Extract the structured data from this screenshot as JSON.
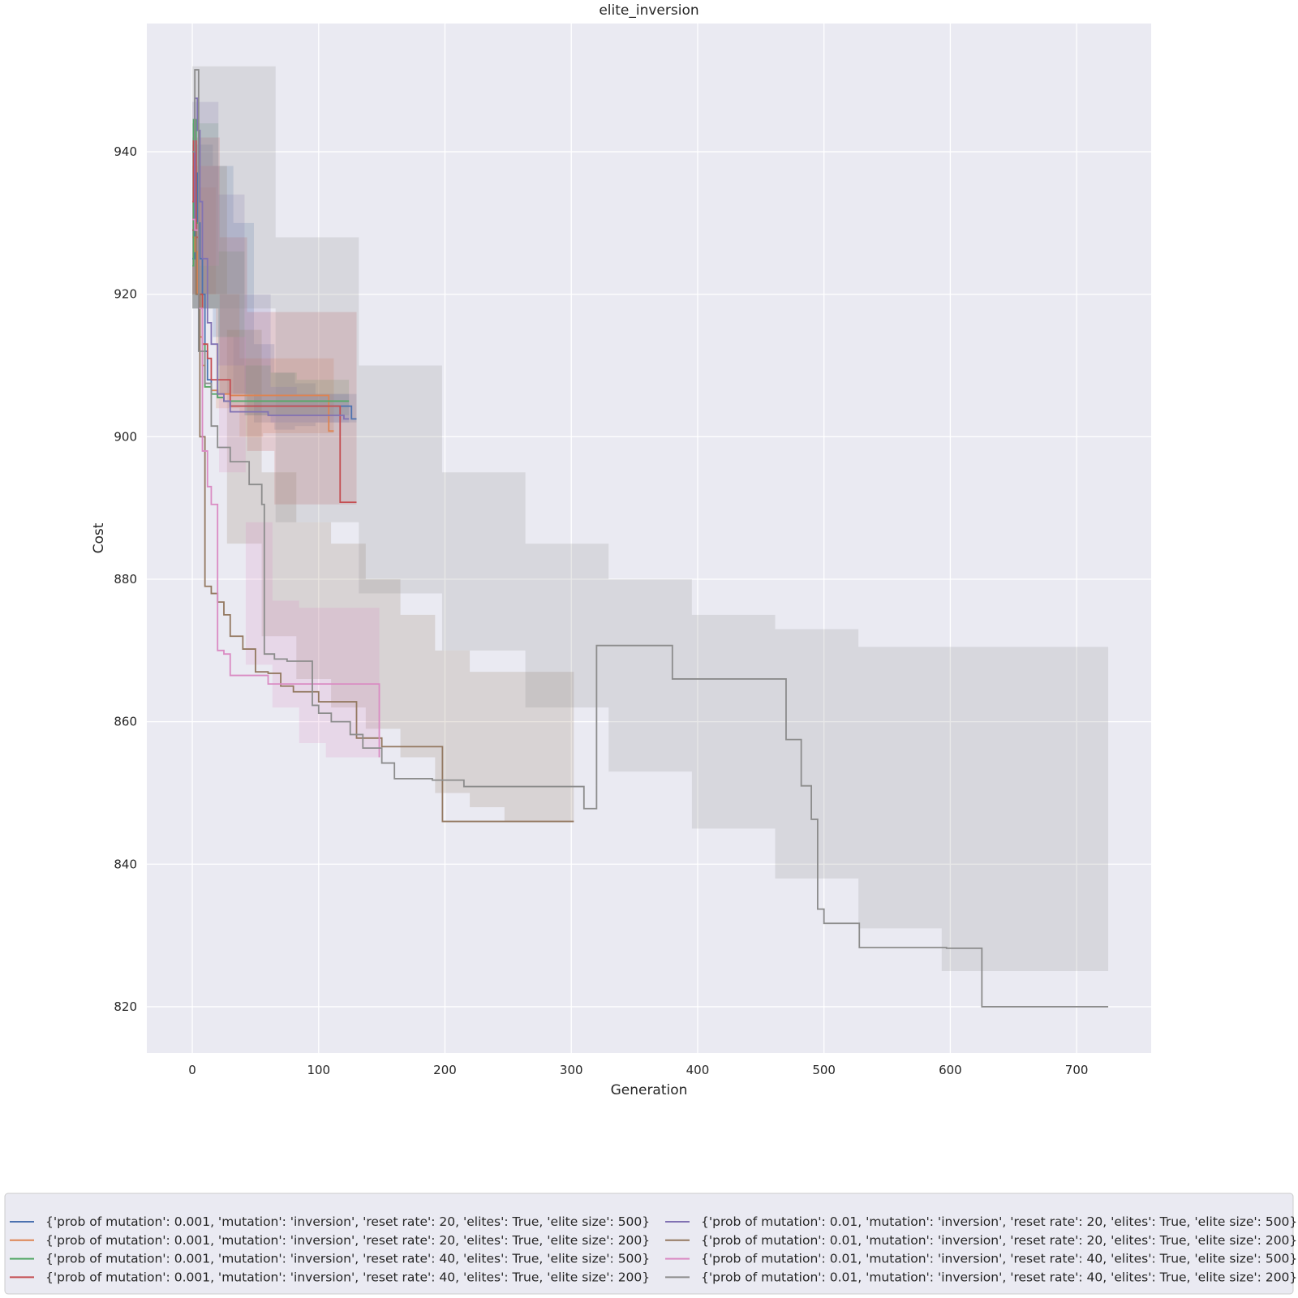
{
  "chart_data": {
    "type": "line",
    "title": "elite_inversion",
    "xlabel": "Generation",
    "ylabel": "Cost",
    "xlim": [
      -36,
      759
    ],
    "ylim": [
      813.5,
      958
    ],
    "xticks": [
      0,
      100,
      200,
      300,
      400,
      500,
      600,
      700
    ],
    "yticks": [
      820,
      840,
      860,
      880,
      900,
      920,
      940
    ],
    "grid": true,
    "legend_position": "bottom",
    "legend_columns": 2,
    "series": [
      {
        "name": "{'prob of mutation': 0.001, 'mutation': 'inversion', 'reset rate': 20, 'elites': True, 'elite size': 500}",
        "color": "#4c72b0",
        "x": [
          0,
          2,
          4,
          6,
          8,
          10,
          12,
          15,
          20,
          25,
          30,
          40,
          60,
          80,
          100,
          123,
          126,
          130
        ],
        "y": [
          925,
          937,
          930,
          925,
          920,
          912,
          908,
          906.5,
          905.5,
          905,
          904.3,
          904.3,
          904.3,
          904.3,
          904.3,
          904.3,
          902.5,
          902.5
        ],
        "band": [
          [
            918,
            941
          ],
          [
            914,
            938
          ],
          [
            906,
            930
          ],
          [
            902,
            913
          ],
          [
            901,
            909
          ],
          [
            901.5,
            907.5
          ],
          [
            902,
            906
          ],
          [
            902,
            906
          ]
        ]
      },
      {
        "name": "{'prob of mutation': 0.001, 'mutation': 'inversion', 'reset rate': 20, 'elites': True, 'elite size': 200}",
        "color": "#dd8452",
        "x": [
          0,
          2,
          4,
          6,
          8,
          10,
          15,
          20,
          30,
          50,
          80,
          106,
          108,
          112
        ],
        "y": [
          928,
          926,
          920,
          914,
          910,
          907,
          906.5,
          906,
          905.8,
          905.8,
          905.8,
          905.8,
          900.8,
          900.8
        ],
        "band": [
          [
            918,
            935
          ],
          [
            904,
            920
          ],
          [
            900,
            911
          ],
          [
            900.5,
            911
          ],
          [
            900.5,
            911
          ],
          [
            900.5,
            911
          ]
        ]
      },
      {
        "name": "{'prob of mutation': 0.001, 'mutation': 'inversion', 'reset rate': 40, 'elites': True, 'elite size': 500}",
        "color": "#55a868",
        "x": [
          0,
          1,
          3,
          5,
          8,
          10,
          15,
          20,
          25,
          30,
          60,
          90,
          122,
          124
        ],
        "y": [
          924,
          944.5,
          930,
          920,
          913,
          907,
          906,
          905.5,
          905,
          905,
          905,
          905,
          905,
          905
        ],
        "band": [
          [
            918,
            944
          ],
          [
            906,
            926
          ],
          [
            903,
            910
          ],
          [
            903,
            909
          ],
          [
            903,
            908
          ],
          [
            903,
            908
          ]
        ]
      },
      {
        "name": "{'prob of mutation': 0.001, 'mutation': 'inversion', 'reset rate': 40, 'elites': True, 'elite size': 200}",
        "color": "#c44e52",
        "x": [
          0,
          1,
          3,
          5,
          8,
          12,
          15,
          20,
          30,
          60,
          100,
          115,
          117,
          130
        ],
        "y": [
          933,
          941.5,
          928,
          920,
          913,
          911,
          908,
          908,
          904.3,
          904.3,
          904.3,
          904.3,
          890.8,
          890.8
        ],
        "band": [
          [
            920,
            942
          ],
          [
            906,
            928
          ],
          [
            898,
            917.5
          ],
          [
            890.5,
            917.5
          ],
          [
            890.5,
            917.5
          ],
          [
            890.5,
            917.5
          ]
        ]
      },
      {
        "name": "{'prob of mutation': 0.01, 'mutation': 'inversion', 'reset rate': 20, 'elites': True, 'elite size': 500}",
        "color": "#8172b3",
        "x": [
          0,
          2,
          4,
          6,
          8,
          12,
          15,
          20,
          25,
          30,
          60,
          100,
          120,
          124
        ],
        "y": [
          929,
          947.5,
          943,
          933,
          925,
          916,
          913,
          906,
          905,
          903.5,
          903,
          903,
          902.5,
          902.5
        ],
        "band": [
          [
            918,
            947
          ],
          [
            910,
            934
          ],
          [
            903,
            920
          ],
          [
            902,
            907
          ],
          [
            902,
            906
          ],
          [
            902,
            906
          ]
        ]
      },
      {
        "name": "{'prob of mutation': 0.01, 'mutation': 'inversion', 'reset rate': 20, 'elites': True, 'elite size': 200}",
        "color": "#937860",
        "x": [
          0,
          3,
          6,
          10,
          15,
          20,
          25,
          30,
          40,
          50,
          60,
          70,
          80,
          95,
          100,
          125,
          130,
          150,
          195,
          198,
          302
        ],
        "y": [
          929,
          920,
          900,
          879,
          878,
          876.8,
          875,
          872,
          870.2,
          867,
          866.8,
          865,
          864.2,
          864.2,
          862.8,
          862.8,
          857.7,
          856.5,
          856.5,
          846,
          846
        ],
        "band": [
          [
            920,
            938
          ],
          [
            885,
            915
          ],
          [
            872,
            895
          ],
          [
            866,
            888
          ],
          [
            862,
            885
          ],
          [
            859,
            880
          ],
          [
            855,
            875
          ],
          [
            850,
            870
          ],
          [
            848,
            867
          ],
          [
            846,
            867
          ],
          [
            846,
            867
          ]
        ]
      },
      {
        "name": "{'prob of mutation': 0.01, 'mutation': 'inversion', 'reset rate': 40, 'elites': True, 'elite size': 500}",
        "color": "#da8bc3",
        "x": [
          0,
          2,
          5,
          8,
          12,
          15,
          20,
          25,
          30,
          40,
          60,
          90,
          110,
          144,
          148
        ],
        "y": [
          930.5,
          929,
          918,
          898,
          893,
          890.5,
          870,
          869.5,
          866.5,
          866.5,
          865.3,
          865.3,
          865.3,
          865.3,
          855
        ],
        "band": [
          [
            924,
            938
          ],
          [
            895,
            914
          ],
          [
            868,
            888
          ],
          [
            862,
            877
          ],
          [
            857,
            876
          ],
          [
            855,
            876
          ],
          [
            855,
            876
          ]
        ]
      },
      {
        "name": "{'prob of mutation': 0.01, 'mutation': 'inversion', 'reset rate': 40, 'elites': True, 'elite size': 200}",
        "color": "#8c8c8c",
        "x": [
          0,
          2,
          5,
          10,
          15,
          20,
          30,
          40,
          45,
          55,
          57,
          65,
          75,
          95,
          100,
          110,
          125,
          135,
          150,
          160,
          190,
          215,
          310,
          315,
          320,
          380,
          470,
          482,
          490,
          495,
          500,
          528,
          597,
          625,
          725
        ],
        "y": [
          940,
          951.5,
          912,
          907.5,
          901.5,
          898.5,
          896.5,
          896.5,
          893.3,
          890.5,
          869.5,
          868.8,
          868.5,
          862.3,
          861.2,
          860,
          858.2,
          856.3,
          854.2,
          852,
          851.8,
          850.9,
          847.8,
          847.8,
          870.7,
          866,
          857.5,
          851,
          846.3,
          833.7,
          831.7,
          828.3,
          828.2,
          820,
          820
        ],
        "band": [
          [
            918,
            952
          ],
          [
            888,
            928
          ],
          [
            878,
            910
          ],
          [
            870,
            895
          ],
          [
            862,
            885
          ],
          [
            853,
            880
          ],
          [
            845,
            875
          ],
          [
            838,
            873
          ],
          [
            831,
            870.5
          ],
          [
            825,
            870.5
          ],
          [
            825,
            870.5
          ]
        ]
      }
    ]
  }
}
